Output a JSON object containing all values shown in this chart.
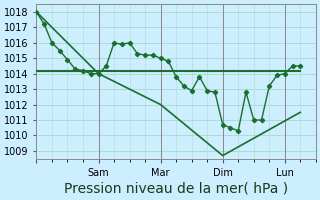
{
  "title": "",
  "xlabel": "Pression niveau de la mer( hPa )",
  "ylabel": "",
  "bg_color": "#cceeff",
  "grid_color": "#aaddcc",
  "line_color": "#1a6e2e",
  "ylim": [
    1008.5,
    1018.5
  ],
  "yticks": [
    1009,
    1010,
    1011,
    1012,
    1013,
    1014,
    1015,
    1016,
    1017,
    1018
  ],
  "xtick_positions": [
    0,
    8,
    16,
    24,
    32
  ],
  "xtick_labels": [
    "",
    "Sam",
    "Mar",
    "Dim",
    "Lun"
  ],
  "xlim": [
    0,
    36
  ],
  "line1_x": [
    0,
    1,
    2,
    3,
    4,
    5,
    6,
    7,
    8,
    9,
    10,
    11,
    12,
    13,
    14,
    15,
    16,
    17,
    18,
    19,
    20,
    21,
    22,
    23,
    24,
    25,
    26,
    27,
    28,
    29,
    30,
    31,
    32,
    33,
    34
  ],
  "line1_y": [
    1018.0,
    1017.2,
    1016.0,
    1015.5,
    1014.9,
    1014.3,
    1014.2,
    1014.0,
    1014.0,
    1014.5,
    1016.0,
    1015.9,
    1016.0,
    1015.3,
    1015.2,
    1015.2,
    1015.0,
    1014.8,
    1013.8,
    1013.2,
    1012.9,
    1013.8,
    1012.9,
    1012.8,
    1010.7,
    1010.5,
    1010.3,
    1012.8,
    1011.0,
    1011.0,
    1013.2,
    1013.9,
    1014.0,
    1014.5,
    1014.5
  ],
  "line2_x": [
    0,
    34
  ],
  "line2_y": [
    1014.2,
    1014.2
  ],
  "line3_x": [
    0,
    8,
    16,
    24,
    34
  ],
  "line3_y": [
    1018.0,
    1014.0,
    1012.0,
    1008.7,
    1011.5
  ],
  "vline_positions": [
    8,
    16,
    24,
    32
  ],
  "xlabel_fontsize": 10,
  "tick_fontsize": 7
}
